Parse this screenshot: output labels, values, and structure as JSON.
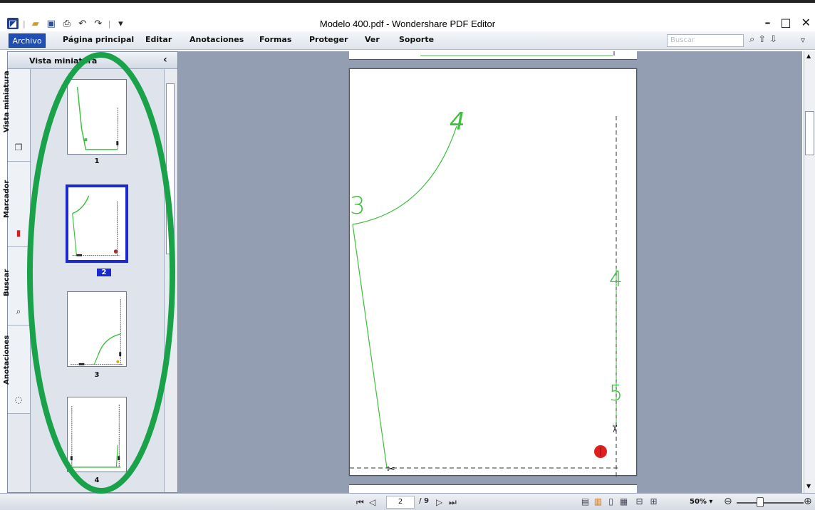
{
  "window": {
    "title": "Modelo 400.pdf - Wondershare PDF Editor",
    "controls": [
      "–",
      "□",
      "✕"
    ]
  },
  "quick_access": {
    "icons": [
      "app-logo-icon",
      "open-folder-icon",
      "save-icon",
      "print-icon",
      "undo-icon",
      "redo-icon",
      "customize-icon"
    ],
    "separator": "|",
    "customize": "▾"
  },
  "menu": {
    "items": [
      "Archivo",
      "Página principal",
      "Editar",
      "Anotaciones",
      "Formas",
      "Proteger",
      "Ver",
      "Soporte"
    ],
    "search_placeholder": "Buscar"
  },
  "panel": {
    "title": "Vista miniatura",
    "close": "‹",
    "tabs": [
      "Vista miniatura",
      "Marcador",
      "Buscar",
      "Anotaciones"
    ],
    "thumbnails": [
      {
        "number": "1",
        "selected": false
      },
      {
        "number": "2",
        "selected": true
      },
      {
        "number": "3",
        "selected": false
      },
      {
        "number": "4",
        "selected": false
      }
    ]
  },
  "document": {
    "page_labels": [
      "4",
      "3",
      "4",
      "5"
    ],
    "line_color": "#3cc13c",
    "marker_color": "#e02020"
  },
  "status": {
    "current_page": "2",
    "total_pages": "/ 9",
    "zoom": "50%",
    "zoom_caret": "▾"
  },
  "annotation": {
    "ellipse_color": "#1aa24a"
  }
}
